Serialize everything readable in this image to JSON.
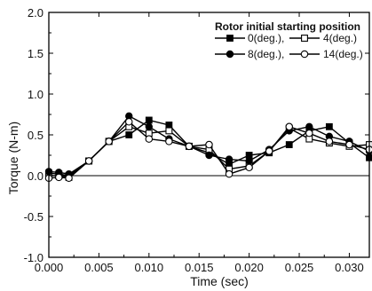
{
  "chart_data": {
    "type": "line",
    "xlabel": "Time (sec)",
    "ylabel": "Torque (N-m)",
    "xlim": [
      0.0,
      0.032
    ],
    "ylim": [
      -1.0,
      2.0
    ],
    "x_ticks": [
      0.0,
      0.005,
      0.01,
      0.015,
      0.02,
      0.025,
      0.03
    ],
    "x_tick_labels": [
      "0.000",
      "0.005",
      "0.010",
      "0.015",
      "0.020",
      "0.025",
      "0.030"
    ],
    "y_ticks": [
      -1.0,
      -0.5,
      0.0,
      0.5,
      1.0,
      1.5,
      2.0
    ],
    "y_tick_labels": [
      "-1.0",
      "-0.5",
      "0.0",
      "0.5",
      "1.0",
      "1.5",
      "2.0"
    ],
    "zero_line": true,
    "grid": false,
    "legend": {
      "title": "Rotor initial starting position",
      "placement": "top-right",
      "entries": [
        "0(deg.),",
        "4(deg.)",
        "8(deg.),",
        "14(deg.)"
      ]
    },
    "series": [
      {
        "name": "0(deg.)",
        "marker": "filled-square",
        "x": [
          0.0,
          0.001,
          0.002,
          0.004,
          0.006,
          0.008,
          0.01,
          0.012,
          0.014,
          0.016,
          0.018,
          0.02,
          0.022,
          0.024,
          0.026,
          0.028,
          0.03,
          0.032
        ],
        "y": [
          0.03,
          0.02,
          0.0,
          0.18,
          0.42,
          0.5,
          0.68,
          0.62,
          0.36,
          0.28,
          0.14,
          0.25,
          0.28,
          0.38,
          0.55,
          0.6,
          0.4,
          0.22
        ]
      },
      {
        "name": "4(deg.)",
        "marker": "open-square",
        "x": [
          0.0,
          0.001,
          0.002,
          0.004,
          0.006,
          0.008,
          0.01,
          0.012,
          0.014,
          0.016,
          0.018,
          0.02,
          0.022,
          0.024,
          0.026,
          0.028,
          0.03,
          0.032
        ],
        "y": [
          0.0,
          0.0,
          -0.02,
          0.18,
          0.42,
          0.6,
          0.52,
          0.55,
          0.36,
          0.32,
          0.08,
          0.12,
          0.3,
          0.58,
          0.45,
          0.4,
          0.36,
          0.38
        ]
      },
      {
        "name": "8(deg.)",
        "marker": "filled-circle",
        "x": [
          0.0,
          0.001,
          0.002,
          0.004,
          0.006,
          0.008,
          0.01,
          0.012,
          0.014,
          0.016,
          0.018,
          0.02,
          0.022,
          0.024,
          0.026,
          0.028,
          0.03,
          0.032
        ],
        "y": [
          0.05,
          0.04,
          0.02,
          0.18,
          0.42,
          0.73,
          0.6,
          0.45,
          0.36,
          0.25,
          0.2,
          0.18,
          0.32,
          0.55,
          0.6,
          0.48,
          0.42,
          0.3
        ]
      },
      {
        "name": "14(deg.)",
        "marker": "open-circle",
        "x": [
          0.0,
          0.001,
          0.002,
          0.004,
          0.006,
          0.008,
          0.01,
          0.012,
          0.014,
          0.016,
          0.018,
          0.02,
          0.022,
          0.024,
          0.026,
          0.028,
          0.03,
          0.032
        ],
        "y": [
          -0.03,
          -0.02,
          -0.03,
          0.18,
          0.42,
          0.66,
          0.45,
          0.42,
          0.36,
          0.38,
          0.02,
          0.1,
          0.3,
          0.6,
          0.52,
          0.42,
          0.38,
          0.32
        ]
      }
    ]
  }
}
